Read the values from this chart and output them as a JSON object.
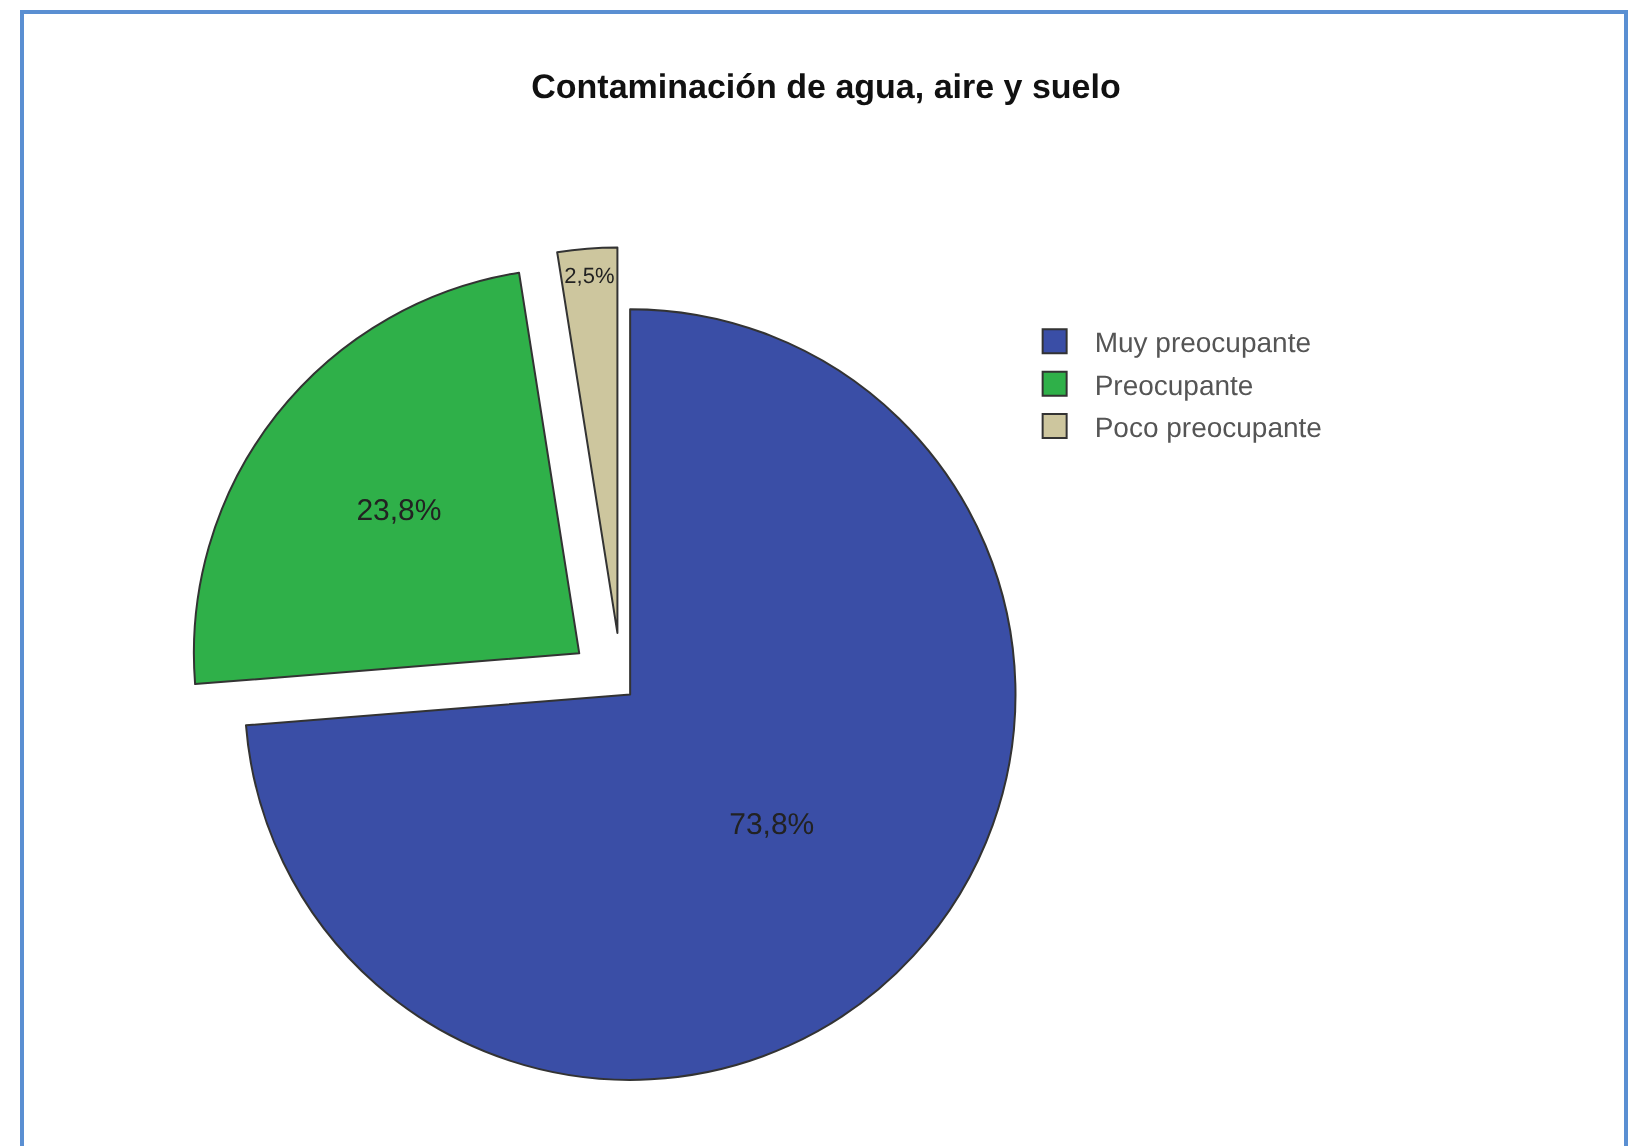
{
  "chart_data": {
    "type": "pie",
    "title": "Contaminación de agua, aire y suelo",
    "categories": [
      "Muy preocupante",
      "Preocupante",
      "Poco preocupante"
    ],
    "values": [
      73.8,
      23.8,
      2.5
    ],
    "value_labels": [
      "73,8%",
      "23,8%",
      "2,5%"
    ],
    "colors": [
      "#3a4ea6",
      "#2fb049",
      "#cdc69e"
    ],
    "legend": "top right"
  }
}
